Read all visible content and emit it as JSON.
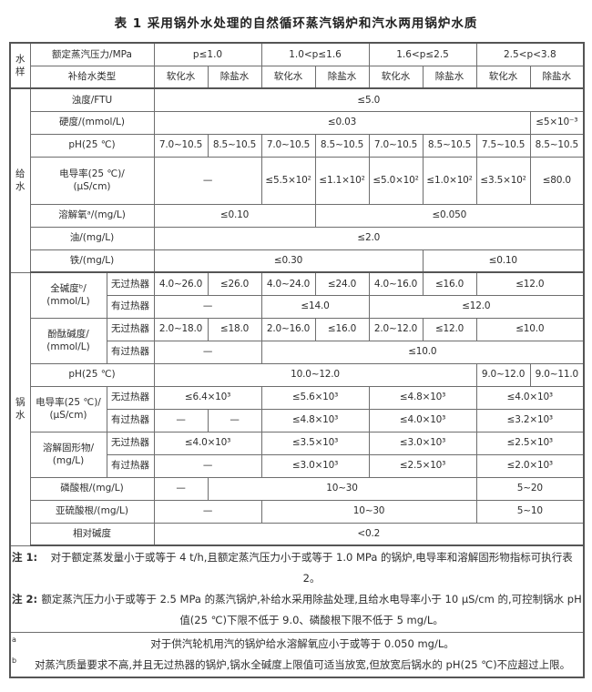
{
  "title": "表 1  采用锅外水处理的自然循环蒸汽锅炉和汽水两用锅炉水质",
  "colors": {
    "border": "#6e6e6e",
    "frame": "#555555",
    "text": "#2e2e2e",
    "background": "#ffffff"
  },
  "header": {
    "sample_col": "水样",
    "pressure_label": "额定蒸汽压力/MPa",
    "pressures": [
      "p≤1.0",
      "1.0<p≤1.6",
      "1.6<p≤2.5",
      "2.5<p<3.8"
    ],
    "makeup_label": "补给水类型",
    "makeup": [
      "软化水",
      "除盐水",
      "软化水",
      "除盐水",
      "软化水",
      "除盐水",
      "软化水",
      "除盐水"
    ]
  },
  "sections": {
    "feedwater": "给水",
    "boilerwater": "锅水"
  },
  "rows": {
    "turbidity": {
      "label": "浊度/FTU",
      "v": [
        "≤5.0"
      ]
    },
    "hardness": {
      "label": "硬度/(mmol/L)",
      "v": [
        "≤0.03",
        "≤5×10⁻³"
      ]
    },
    "ph_feed": {
      "label": "pH(25 ℃)",
      "v": [
        "7.0~10.5",
        "8.5~10.5",
        "7.0~10.5",
        "8.5~10.5",
        "7.0~10.5",
        "8.5~10.5",
        "7.5~10.5",
        "8.5~10.5"
      ]
    },
    "conductivity_feed": {
      "label": "电导率(25 ℃)/\n(μS/cm)",
      "v": [
        "—",
        "≤5.5×10²",
        "≤1.1×10²",
        "≤5.0×10²",
        "≤1.0×10²",
        "≤3.5×10²",
        "≤80.0"
      ]
    },
    "oxygen": {
      "label": "溶解氧ᵃ/(mg/L)",
      "v": [
        "≤0.10",
        "≤0.050"
      ]
    },
    "oil": {
      "label": "油/(mg/L)",
      "v": [
        "≤2.0"
      ]
    },
    "iron": {
      "label": "铁/(mg/L)",
      "v": [
        "≤0.30",
        "≤0.10"
      ]
    },
    "alkalinity": {
      "label": "全碱度ᵇ/\n(mmol/L)",
      "no_superheater_label": "无过热器",
      "no_superheater": [
        "4.0~26.0",
        "≤26.0",
        "4.0~24.0",
        "≤24.0",
        "4.0~16.0",
        "≤16.0",
        "≤12.0"
      ],
      "superheater_label": "有过热器",
      "superheater": [
        "—",
        "≤14.0",
        "≤12.0"
      ]
    },
    "phenolphthalein": {
      "label": "酚酞碱度/\n(mmol/L)",
      "no_superheater_label": "无过热器",
      "no_superheater": [
        "2.0~18.0",
        "≤18.0",
        "2.0~16.0",
        "≤16.0",
        "2.0~12.0",
        "≤12.0",
        "≤10.0"
      ],
      "superheater_label": "有过热器",
      "superheater": [
        "—",
        "≤10.0"
      ]
    },
    "ph_boiler": {
      "label": "pH(25 ℃)",
      "v": [
        "10.0~12.0",
        "9.0~12.0",
        "9.0~11.0"
      ]
    },
    "conductivity_boiler": {
      "label": "电导率(25 ℃)/\n(μS/cm)",
      "no_superheater_label": "无过热器",
      "no_superheater": [
        "≤6.4×10³",
        "≤5.6×10³",
        "≤4.8×10³",
        "≤4.0×10³"
      ],
      "superheater_label": "有过热器",
      "superheater": [
        "—",
        "—",
        "≤4.8×10³",
        "≤4.0×10³",
        "≤3.2×10³"
      ]
    },
    "dissolved_solids": {
      "label": "溶解固形物/\n(mg/L)",
      "no_superheater_label": "无过热器",
      "no_superheater": [
        "≤4.0×10³",
        "≤3.5×10³",
        "≤3.0×10³",
        "≤2.5×10³"
      ],
      "superheater_label": "有过热器",
      "superheater": [
        "—",
        "≤3.0×10³",
        "≤2.5×10³",
        "≤2.0×10³"
      ]
    },
    "phosphate": {
      "label": "磷酸根/(mg/L)",
      "v": [
        "—",
        "10~30",
        "5~20"
      ]
    },
    "sulfite": {
      "label": "亚硫酸根/(mg/L)",
      "v": [
        "—",
        "10~30",
        "5~10"
      ]
    },
    "relative_alkalinity": {
      "label": "相对碱度",
      "v": [
        "<0.2"
      ]
    }
  },
  "notes": [
    {
      "label": "注 1:",
      "text": "对于额定蒸发量小于或等于 4 t/h,且额定蒸汽压力小于或等于 1.0 MPa 的锅炉,电导率和溶解固形物指标可执行表 2。"
    },
    {
      "label": "注 2:",
      "text": "额定蒸汽压力小于或等于 2.5 MPa 的蒸汽锅炉,补给水采用除盐处理,且给水电导率小于 10 μS/cm 的,可控制锅水 pH 值(25 ℃)下限不低于 9.0、磷酸根下限不低于 5 mg/L。"
    }
  ],
  "footnotes": [
    {
      "marker": "a",
      "text": "对于供汽轮机用汽的锅炉给水溶解氧应小于或等于 0.050 mg/L。"
    },
    {
      "marker": "b",
      "text": "对蒸汽质量要求不高,并且无过热器的锅炉,锅水全碱度上限值可适当放宽,但放宽后锅水的 pH(25 ℃)不应超过上限。"
    }
  ]
}
